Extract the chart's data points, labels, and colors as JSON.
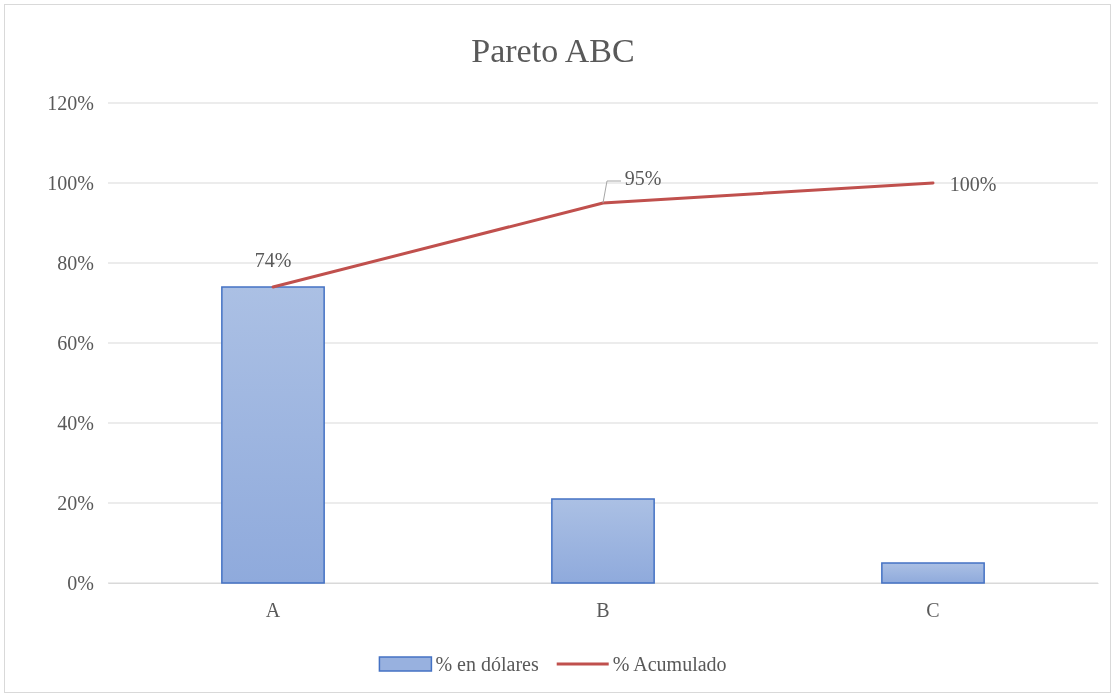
{
  "chart_data": {
    "type": "bar",
    "title": "Pareto ABC",
    "categories": [
      "A",
      "B",
      "C"
    ],
    "series": [
      {
        "name": "% en dólares",
        "color": "#4472c4",
        "values": [
          74,
          21,
          5
        ]
      },
      {
        "name": "% Acumulado",
        "type": "line",
        "color": "#c0504d",
        "values": [
          74,
          95,
          100
        ],
        "value_labels": [
          "74%",
          "95%",
          "100%"
        ]
      }
    ],
    "ylim": [
      0,
      120
    ],
    "yticks": [
      {
        "value": 0,
        "label": "0%"
      },
      {
        "value": 20,
        "label": "20%"
      },
      {
        "value": 40,
        "label": "40%"
      },
      {
        "value": 60,
        "label": "60%"
      },
      {
        "value": 80,
        "label": "80%"
      },
      {
        "value": 100,
        "label": "100%"
      },
      {
        "value": 120,
        "label": "120%"
      }
    ],
    "grid": "y",
    "legend": "bottom",
    "marker": "none",
    "line_style": "solid"
  }
}
